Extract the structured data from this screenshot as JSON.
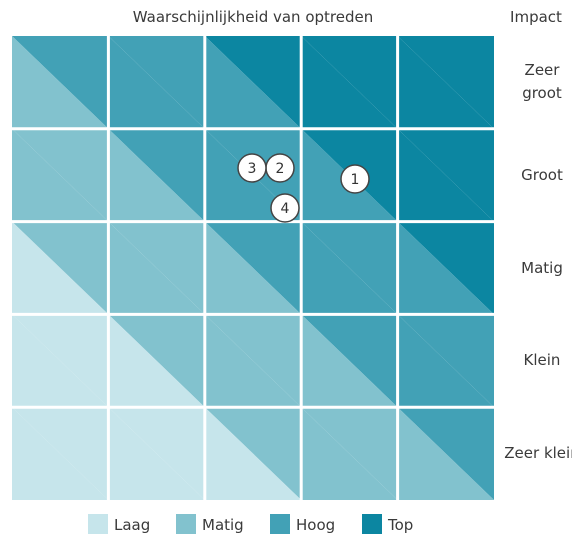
{
  "title": "Waarschijnlijkheid van optreden",
  "impact_label": "Impact",
  "rows": [
    "Zeer groot",
    "Groot",
    "Matig",
    "Klein",
    "Zeer klein"
  ],
  "levels": [
    {
      "name": "Laag",
      "color": "#c6e5eb"
    },
    {
      "name": "Matig",
      "color": "#82c2ce"
    },
    {
      "name": "Hoog",
      "color": "#42a1b6"
    },
    {
      "name": "Top",
      "color": "#0c86a1"
    }
  ],
  "cells": [
    [
      [
        2,
        1
      ],
      [
        2,
        2
      ],
      [
        3,
        2
      ],
      [
        3,
        3
      ],
      [
        3,
        3
      ]
    ],
    [
      [
        1,
        1
      ],
      [
        2,
        1
      ],
      [
        2,
        2
      ],
      [
        3,
        2
      ],
      [
        3,
        3
      ]
    ],
    [
      [
        1,
        0
      ],
      [
        1,
        1
      ],
      [
        2,
        1
      ],
      [
        2,
        2
      ],
      [
        3,
        2
      ]
    ],
    [
      [
        0,
        0
      ],
      [
        1,
        0
      ],
      [
        1,
        1
      ],
      [
        2,
        1
      ],
      [
        2,
        2
      ]
    ],
    [
      [
        0,
        0
      ],
      [
        0,
        0
      ],
      [
        1,
        0
      ],
      [
        1,
        1
      ],
      [
        2,
        1
      ]
    ]
  ],
  "markers": [
    "1",
    "2",
    "3",
    "4"
  ]
}
